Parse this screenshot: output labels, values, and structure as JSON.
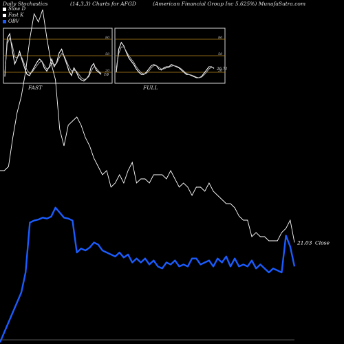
{
  "header": {
    "left": "Daily Stochastics",
    "middle": "(14,3,3) Charts for AFGD",
    "right": "(American  Financial Group Inc 5.625%) MunafaSutra.com"
  },
  "legend": [
    {
      "label": "Slow D",
      "color": "#ffffff"
    },
    {
      "label": "Fast K",
      "color": "#ffffff"
    },
    {
      "label": "OBV",
      "color": "#1a5cff"
    }
  ],
  "colors": {
    "background": "#000000",
    "level_line": "#b8861b",
    "price": "#ffffff",
    "obv": "#1a5cff"
  },
  "chart_data": [
    {
      "type": "line",
      "panel": "FAST",
      "title": "FAST",
      "ylim": [
        0,
        100
      ],
      "levels": [
        20,
        50,
        80
      ],
      "level_labels": [
        "20",
        "50",
        "80"
      ],
      "last_value_label": "16",
      "x": [
        1,
        2,
        3,
        4,
        5,
        6,
        7,
        8,
        9,
        10,
        11,
        12,
        13,
        14,
        15,
        16,
        17,
        18,
        19,
        20,
        21,
        22,
        23,
        24,
        25,
        26,
        27,
        28,
        29,
        30,
        31,
        32,
        33,
        34,
        35,
        36,
        37,
        38,
        39,
        40
      ],
      "series": [
        {
          "values": [
            12,
            82,
            90,
            60,
            35,
            45,
            58,
            42,
            28,
            16,
            14,
            22,
            30,
            38,
            44,
            40,
            28,
            22,
            30,
            44,
            30,
            38,
            55,
            62,
            48,
            36,
            22,
            14,
            28,
            20,
            10,
            6,
            4,
            8,
            14,
            30,
            36,
            24,
            20,
            16
          ]
        },
        {
          "values": [
            20,
            72,
            82,
            70,
            48,
            46,
            52,
            46,
            34,
            24,
            18,
            20,
            26,
            32,
            38,
            40,
            33,
            26,
            28,
            36,
            34,
            36,
            46,
            54,
            50,
            40,
            30,
            22,
            24,
            22,
            16,
            10,
            7,
            8,
            12,
            22,
            30,
            28,
            22,
            18
          ]
        }
      ]
    },
    {
      "type": "line",
      "panel": "FULL",
      "title": "FULL",
      "ylim": [
        0,
        100
      ],
      "levels": [
        20,
        50,
        80
      ],
      "level_labels": [
        "20",
        "50",
        "80"
      ],
      "last_value_label": "26.71",
      "x": [
        1,
        2,
        3,
        4,
        5,
        6,
        7,
        8,
        9,
        10,
        11,
        12,
        13,
        14,
        15,
        16,
        17,
        18,
        19,
        20,
        21,
        22,
        23,
        24,
        25,
        26,
        27,
        28,
        29,
        30,
        31,
        32,
        33,
        34,
        35,
        36,
        37,
        38,
        39,
        40
      ],
      "series": [
        {
          "values": [
            20,
            62,
            74,
            68,
            56,
            46,
            40,
            34,
            26,
            20,
            16,
            16,
            20,
            26,
            32,
            34,
            32,
            26,
            24,
            28,
            30,
            30,
            34,
            32,
            30,
            28,
            24,
            20,
            16,
            16,
            14,
            12,
            10,
            10,
            12,
            18,
            24,
            30,
            30,
            27
          ]
        },
        {
          "values": [
            28,
            54,
            66,
            66,
            58,
            50,
            44,
            38,
            30,
            24,
            19,
            17,
            18,
            22,
            28,
            32,
            32,
            29,
            26,
            26,
            28,
            29,
            31,
            32,
            31,
            29,
            26,
            22,
            18,
            16,
            15,
            13,
            11,
            10,
            11,
            15,
            20,
            26,
            29,
            28
          ]
        }
      ]
    },
    {
      "type": "line",
      "panel": "main",
      "last_price_label": "21.03",
      "price_label_suffix": "Close",
      "x": [
        1,
        2,
        3,
        4,
        5,
        6,
        7,
        8,
        9,
        10,
        11,
        12,
        13,
        14,
        15,
        16,
        17,
        18,
        19,
        20,
        21,
        22,
        23,
        24,
        25,
        26,
        27,
        28,
        29,
        30,
        31,
        32,
        33,
        34,
        35,
        36,
        37,
        38,
        39,
        40,
        41,
        42,
        43,
        44,
        45,
        46,
        47,
        48,
        49,
        50,
        51,
        52,
        53,
        54,
        55,
        56,
        57,
        58,
        59,
        60,
        61,
        62,
        63,
        64,
        65,
        66,
        67,
        68,
        69,
        70
      ],
      "series": [
        {
          "name": "Close",
          "color": "#ffffff",
          "values": [
            21.9,
            21.9,
            21.95,
            22.3,
            22.6,
            22.8,
            23.1,
            23.5,
            23.8,
            23.7,
            23.85,
            23.5,
            23.2,
            23.0,
            22.4,
            22.2,
            22.45,
            22.5,
            22.55,
            22.45,
            22.3,
            22.2,
            22.05,
            21.95,
            21.85,
            21.9,
            21.7,
            21.75,
            21.85,
            21.75,
            21.9,
            22.0,
            21.75,
            21.8,
            21.8,
            21.75,
            21.85,
            21.85,
            21.85,
            21.8,
            21.9,
            21.8,
            21.7,
            21.75,
            21.7,
            21.6,
            21.7,
            21.7,
            21.65,
            21.75,
            21.65,
            21.6,
            21.55,
            21.5,
            21.5,
            21.45,
            21.35,
            21.3,
            21.3,
            21.1,
            21.15,
            21.1,
            21.1,
            21.05,
            21.05,
            21.05,
            21.15,
            21.2,
            21.3,
            21.03
          ]
        },
        {
          "name": "OBV",
          "color": "#1a5cff",
          "values": [
            -110,
            -100,
            -90,
            -80,
            -70,
            -60,
            -40,
            10,
            12,
            13,
            15,
            14,
            16,
            25,
            20,
            15,
            14,
            12,
            -20,
            -16,
            -18,
            -15,
            -10,
            -12,
            -18,
            -20,
            -22,
            -24,
            -20,
            -25,
            -22,
            -30,
            -26,
            -30,
            -26,
            -32,
            -28,
            -34,
            -36,
            -30,
            -32,
            -28,
            -34,
            -32,
            -34,
            -26,
            -26,
            -32,
            -30,
            -28,
            -34,
            -26,
            -30,
            -24,
            -34,
            -26,
            -34,
            -32,
            -34,
            -28,
            -36,
            -32,
            -36,
            -40,
            -36,
            -38,
            -40,
            -3,
            -14,
            -34
          ]
        }
      ]
    }
  ]
}
